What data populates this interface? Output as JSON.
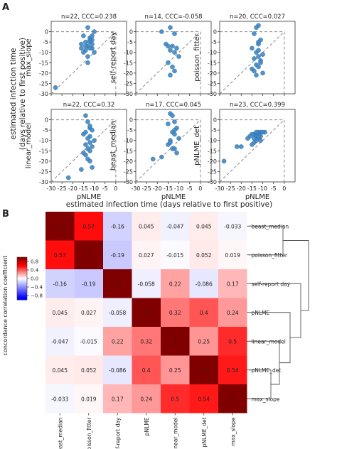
{
  "panel_a_label": "A",
  "panel_b_label": "B",
  "chart_data": [
    {
      "type": "scatter",
      "panel": "A",
      "shared_ylabel": "estimated infection time\n(days relative to first positive)",
      "shared_xlabel": "estimated infection time (days relative to first positive)",
      "xlim": [
        -30,
        5
      ],
      "ylim": [
        -30,
        5
      ],
      "xticks": [
        -30,
        -25,
        -20,
        -15,
        -10,
        -5,
        0
      ],
      "yticks": [
        0,
        -5,
        -10,
        -15,
        -20,
        -25,
        -30
      ],
      "point_color": "#3f87c3",
      "subplots": [
        {
          "title": "n=22, CCC=0.238",
          "ylabel": "max_slope",
          "xlabel": "",
          "x": [
            -13,
            -10,
            -15,
            -12,
            -11,
            -14,
            -16,
            -13,
            -11,
            -12,
            -14,
            -10,
            -15,
            -13,
            -12,
            -11,
            -14,
            -13,
            -16,
            -12,
            -11,
            -28
          ],
          "y": [
            2,
            0,
            -2,
            -3,
            -4,
            -5,
            -6,
            -7,
            -8,
            -8,
            -9,
            -10,
            -10,
            -12,
            -4,
            -2,
            -7,
            -15,
            -8,
            -5,
            -6,
            -27
          ]
        },
        {
          "title": "n=14, CCC=-0.058",
          "ylabel": "self-report day",
          "xlabel": "",
          "x": [
            -14,
            -18,
            -12,
            -16,
            -15,
            -13,
            -11,
            -14,
            -12,
            -10,
            -15,
            -13,
            -12,
            -14
          ],
          "y": [
            2,
            0,
            -1,
            -6,
            -7,
            -7,
            -8,
            -9,
            -10,
            -12,
            -15,
            -17,
            -19,
            -21
          ]
        },
        {
          "title": "n=20, CCC=0.027",
          "ylabel": "poisson_fitter",
          "xlabel": "",
          "x": [
            -12,
            -13,
            -14,
            -11,
            -12,
            -15,
            -13,
            -10,
            -12,
            -14,
            -11,
            -13,
            -12,
            -15,
            -14,
            -10,
            -13,
            -12,
            -11,
            -12
          ],
          "y": [
            3,
            2,
            -1,
            -4,
            -6,
            -8,
            -10,
            -11,
            -12,
            -13,
            -14,
            -16,
            -17,
            -18,
            -19,
            -20,
            -21,
            -5,
            -15,
            -9
          ]
        },
        {
          "title": "n=22, CCC=0.32",
          "ylabel": "linear_model",
          "xlabel": "pNLME",
          "x": [
            -14,
            -13,
            -12,
            -11,
            -15,
            -12,
            -13,
            -10,
            -12,
            -14,
            -11,
            -13,
            -12,
            -15,
            -14,
            -13,
            -12,
            -11,
            -16,
            -22,
            -14,
            -12
          ],
          "y": [
            2,
            -1,
            -4,
            -5,
            -7,
            -8,
            -9,
            -10,
            -11,
            -12,
            -13,
            -14,
            -15,
            -16,
            -17,
            -19,
            -20,
            -23,
            -24,
            -28,
            -6,
            -3
          ]
        },
        {
          "title": "n=17, CCC=0.045",
          "ylabel": "beast_median",
          "xlabel": "pNLME",
          "x": [
            -14,
            -13,
            -12,
            -15,
            -11,
            -13,
            -12,
            -10,
            -14,
            -15,
            -12,
            -13,
            -11,
            -18,
            -22,
            -12,
            -14
          ],
          "y": [
            3,
            2,
            -1,
            -2,
            -4,
            -6,
            -7,
            -9,
            -10,
            -12,
            -14,
            -14,
            -16,
            -18,
            -19,
            -5,
            -11
          ]
        },
        {
          "title": "n=23, CCC=0.399",
          "ylabel": "pNLME_det",
          "xlabel": "pNLME",
          "x": [
            -9,
            -10,
            -11,
            -12,
            -13,
            -14,
            -15,
            -16,
            -17,
            -11,
            -12,
            -13,
            -14,
            -15,
            -12,
            -13,
            -14,
            -11,
            -22,
            -20,
            -28,
            -13,
            -12
          ],
          "y": [
            -6,
            -6,
            -6,
            -6,
            -7,
            -7,
            -7,
            -8,
            -9,
            -8,
            -9,
            -10,
            -11,
            -12,
            -7,
            -8,
            -9,
            -10,
            -13,
            -13,
            -20,
            -6,
            -8
          ]
        }
      ]
    },
    {
      "type": "heatmap",
      "panel": "B",
      "labels": [
        "beast_median",
        "poisson_fitter",
        "self-report day",
        "pNLME",
        "linear_model",
        "pNLME_det",
        "max_slope"
      ],
      "values": [
        [
          1,
          0.57,
          -0.16,
          0.045,
          -0.047,
          0.045,
          -0.033
        ],
        [
          0.57,
          1,
          -0.19,
          0.027,
          -0.015,
          0.052,
          0.019
        ],
        [
          -0.16,
          -0.19,
          1,
          -0.058,
          0.22,
          -0.086,
          0.17
        ],
        [
          0.045,
          0.027,
          -0.058,
          1,
          0.32,
          0.4,
          0.24
        ],
        [
          -0.047,
          -0.015,
          0.22,
          0.32,
          1,
          0.25,
          0.5
        ],
        [
          0.045,
          0.052,
          -0.086,
          0.4,
          0.25,
          1,
          0.54
        ],
        [
          -0.033,
          0.019,
          0.17,
          0.24,
          0.5,
          0.54,
          1
        ]
      ],
      "display": [
        [
          "1",
          "0.57",
          "-0.16",
          "0.045",
          "-0.047",
          "0.045",
          "-0.033"
        ],
        [
          "0.57",
          "1",
          "-0.19",
          "0.027",
          "-0.015",
          "0.052",
          "0.019"
        ],
        [
          "-0.16",
          "-0.19",
          "1",
          "-0.058",
          "0.22",
          "-0.086",
          "0.17"
        ],
        [
          "0.045",
          "0.027",
          "-0.058",
          "1",
          "0.32",
          "0.4",
          "0.24"
        ],
        [
          "-0.047",
          "-0.015",
          "0.22",
          "0.32",
          "1",
          "0.25",
          "0.5"
        ],
        [
          "0.045",
          "0.052",
          "-0.086",
          "0.4",
          "0.25",
          "1",
          "0.54"
        ],
        [
          "-0.033",
          "0.019",
          "0.17",
          "0.24",
          "0.5",
          "0.54",
          "1"
        ]
      ],
      "colorbar_label": "concordance correlation coefficient",
      "colorbar_ticks": [
        "0.8",
        "0.4",
        "0.0",
        "−0.4",
        "−0.8"
      ],
      "colorbar_tick_values": [
        0.8,
        0.4,
        0.0,
        -0.4,
        -0.8
      ],
      "vmin": -1,
      "vmax": 1,
      "colormap": {
        "negative": "#0000ff",
        "zero": "#ffffff",
        "positive": "#ff0000",
        "max": "#800000"
      },
      "dendrogram": "right"
    }
  ]
}
